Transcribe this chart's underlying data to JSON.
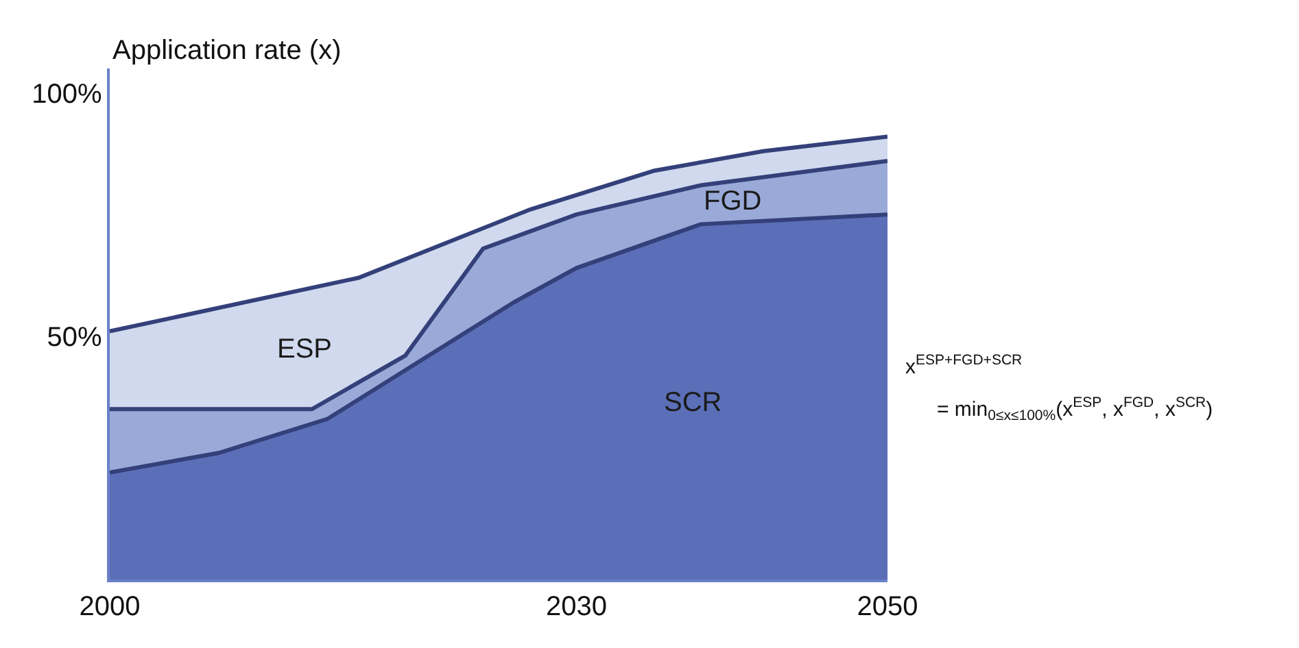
{
  "chart_data": {
    "type": "area",
    "ylabel": "Application rate (x)",
    "xlim": [
      2000,
      2050
    ],
    "xticks": [
      2000,
      2030,
      2050
    ],
    "ylim": [
      0,
      105
    ],
    "yticks": [
      {
        "value": 50,
        "label": "50%"
      },
      {
        "value": 100,
        "label": "100%"
      }
    ],
    "legend": false,
    "series": [
      {
        "name": "ESP",
        "color": "#d0d9ee",
        "x": [
          2000,
          2016,
          2027,
          2035,
          2042,
          2050
        ],
        "values": [
          51,
          62,
          76,
          84,
          88,
          91
        ]
      },
      {
        "name": "FGD",
        "color": "#9aaad8",
        "x": [
          2000,
          2013,
          2019,
          2024,
          2030,
          2038,
          2050
        ],
        "values": [
          35,
          35,
          46,
          68,
          75,
          81,
          86
        ]
      },
      {
        "name": "SCR",
        "color": "#5b6fb8",
        "x": [
          2000,
          2007,
          2014,
          2020,
          2026,
          2030,
          2038,
          2050
        ],
        "values": [
          22,
          26,
          33,
          45,
          57,
          64,
          73,
          75
        ]
      }
    ],
    "annotations": [
      "x$^{ESP+FGD+SCR}$",
      "= min$_{0≤x≤100%}$(x$^{ESP}$, x$^{FGD}$, x$^{SCR}$)"
    ]
  }
}
